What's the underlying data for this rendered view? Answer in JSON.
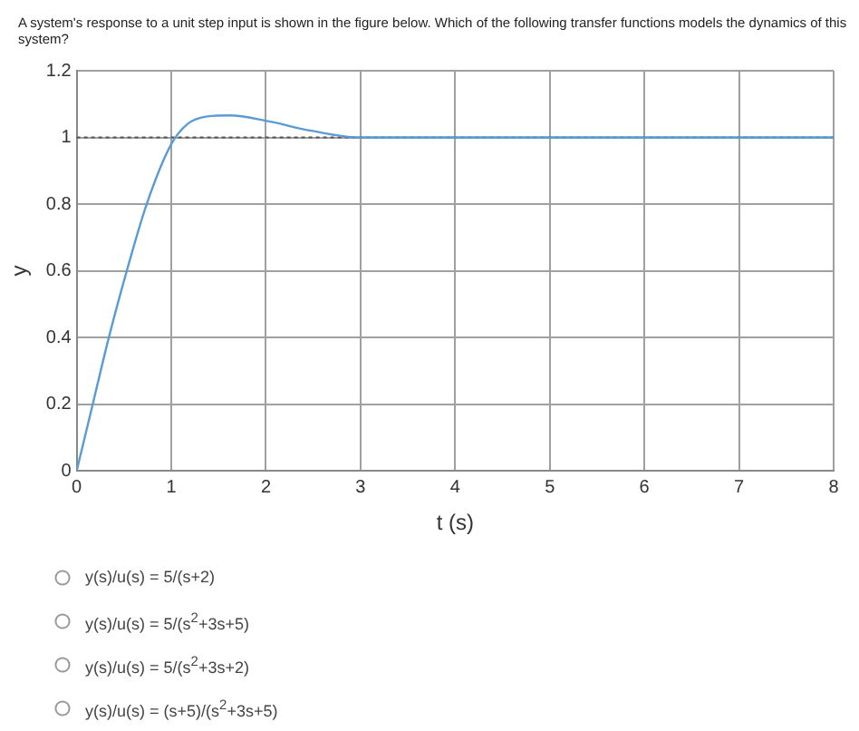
{
  "chart_data": {
    "type": "line",
    "title": "A system's response to a unit step input is shown in the figure below. Which of the following transfer functions models the dynamics of this system?",
    "xlabel": "t (s)",
    "ylabel": "y",
    "x": [
      0,
      0.17,
      0.34,
      0.53,
      0.74,
      1.0,
      1.17,
      1.38,
      1.62,
      2.0,
      2.48,
      2.99,
      4,
      5,
      6,
      7,
      8
    ],
    "series": [
      {
        "color": "#5b9bd5",
        "values": [
          0,
          0.2,
          0.4,
          0.6,
          0.8,
          0.98,
          1.04,
          1.063,
          1.066,
          1.05,
          1.02,
          1.0,
          1.0,
          1.0,
          1.0,
          1.0,
          1.0
        ]
      }
    ],
    "xlim": [
      0,
      8
    ],
    "xticks": [
      0,
      1,
      2,
      3,
      4,
      5,
      6,
      7,
      8
    ],
    "ylim": [
      0,
      1.2
    ],
    "yticks": [
      0,
      0.2,
      0.4,
      0.6,
      0.8,
      1,
      1.2
    ],
    "grid": true,
    "legend": false,
    "marker": "none",
    "line_style": "solid",
    "ref_lines": [
      {
        "axis": "y",
        "value": 1,
        "color": "#555555",
        "line_style": "dotted"
      }
    ],
    "annotations": [
      "y(s)/u(s) = 5/(s+2)",
      "y(s)/u(s) = 5/(s$^{2}$+3s+5)",
      "y(s)/u(s) = 5/(s$^{2}$+3s+2)",
      "y(s)/u(s) = (s+5)/(s$^{2}$+3s+5)"
    ]
  }
}
